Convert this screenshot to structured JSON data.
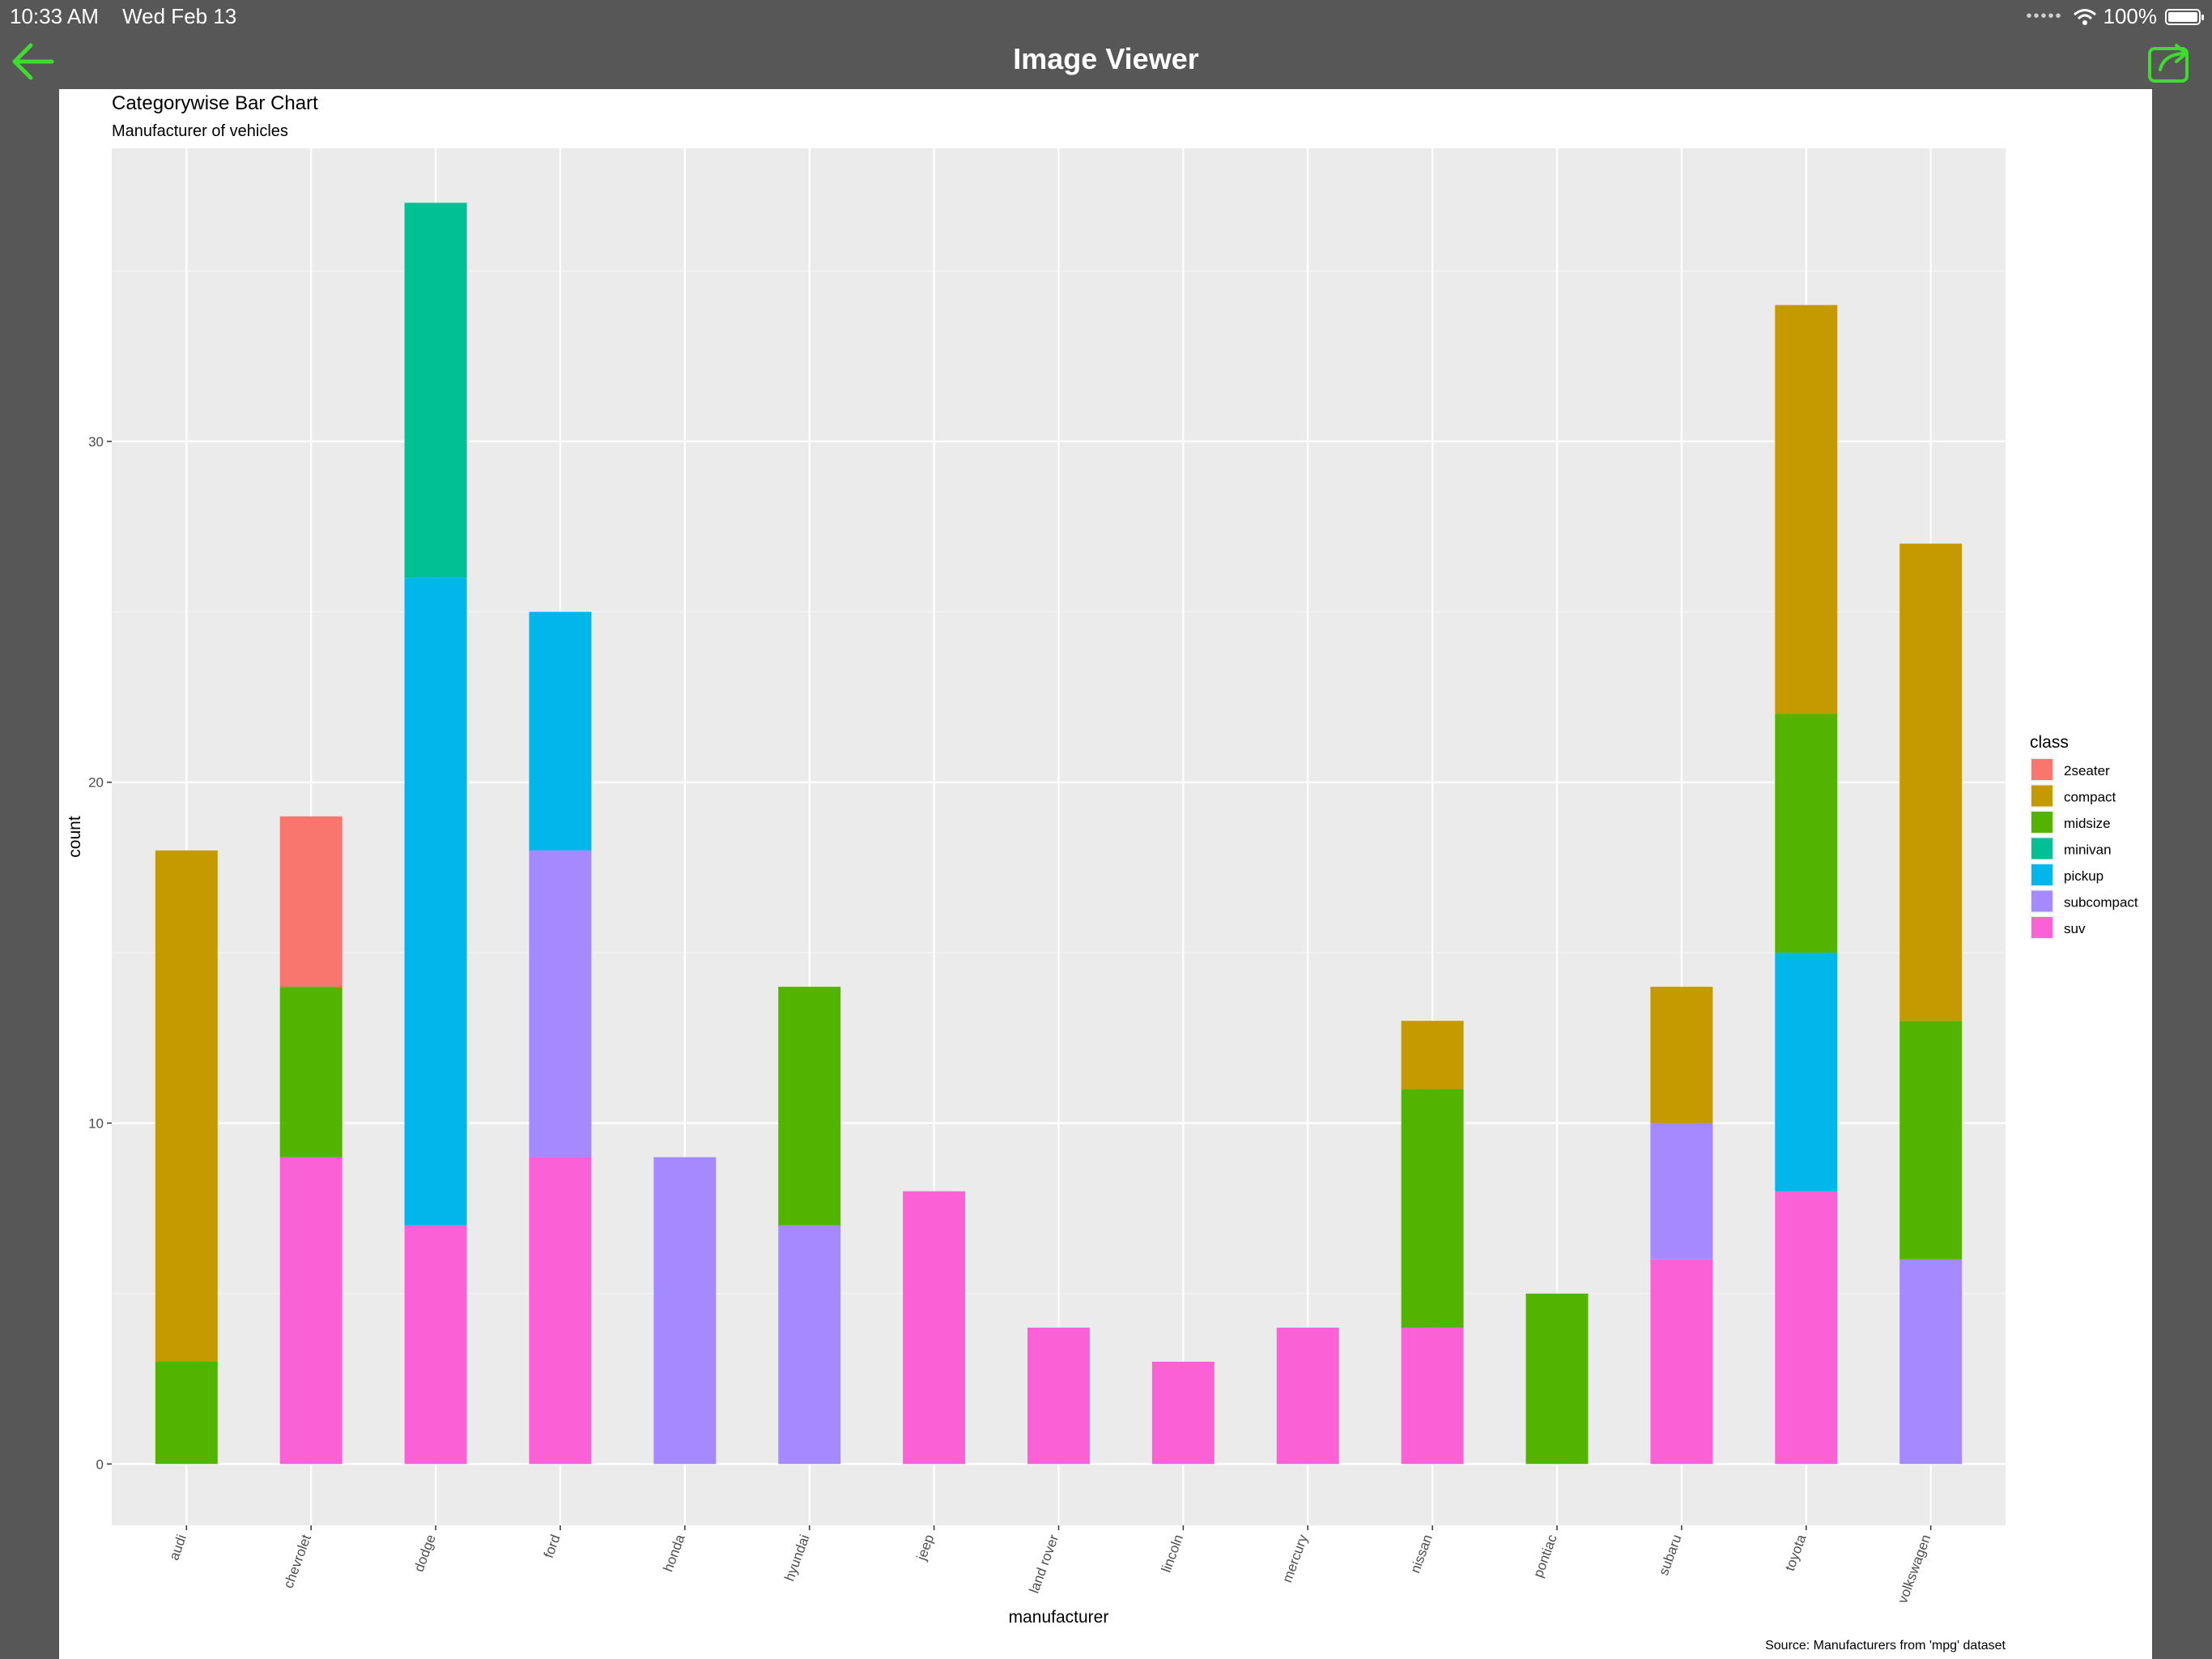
{
  "status": {
    "time": "10:33 AM",
    "date": "Wed Feb 13",
    "battery": "100%"
  },
  "nav": {
    "title": "Image Viewer",
    "back_icon": "arrow-left-icon",
    "share_icon": "share-icon",
    "accent": "#3ddc2e"
  },
  "chart_data": {
    "type": "bar",
    "stacked": true,
    "title": "Categorywise Bar Chart",
    "subtitle": "Manufacturer of vehicles",
    "caption": "Source: Manufacturers from 'mpg' dataset",
    "xlabel": "manufacturer",
    "ylabel": "count",
    "ylim": [
      -1.8,
      38.6
    ],
    "yticks": [
      0,
      10,
      20,
      30
    ],
    "legend_title": "class",
    "legend_position": "right",
    "categories": [
      "audi",
      "chevrolet",
      "dodge",
      "ford",
      "honda",
      "hyundai",
      "jeep",
      "land rover",
      "lincoln",
      "mercury",
      "nissan",
      "pontiac",
      "subaru",
      "toyota",
      "volkswagen"
    ],
    "series": [
      {
        "name": "2seater",
        "color": "#F8766D",
        "values": [
          0,
          5,
          0,
          0,
          0,
          0,
          0,
          0,
          0,
          0,
          0,
          0,
          0,
          0,
          0
        ]
      },
      {
        "name": "compact",
        "color": "#C49A00",
        "values": [
          15,
          0,
          0,
          0,
          0,
          0,
          0,
          0,
          0,
          0,
          2,
          0,
          4,
          12,
          14
        ]
      },
      {
        "name": "midsize",
        "color": "#53B400",
        "values": [
          3,
          5,
          0,
          0,
          0,
          7,
          0,
          0,
          0,
          0,
          7,
          5,
          0,
          7,
          7
        ]
      },
      {
        "name": "minivan",
        "color": "#00C094",
        "values": [
          0,
          0,
          11,
          0,
          0,
          0,
          0,
          0,
          0,
          0,
          0,
          0,
          0,
          0,
          0
        ]
      },
      {
        "name": "pickup",
        "color": "#00B6EB",
        "values": [
          0,
          0,
          19,
          7,
          0,
          0,
          0,
          0,
          0,
          0,
          0,
          0,
          0,
          7,
          0
        ]
      },
      {
        "name": "subcompact",
        "color": "#A58AFF",
        "values": [
          0,
          0,
          0,
          9,
          9,
          7,
          0,
          0,
          0,
          0,
          0,
          0,
          4,
          0,
          6
        ]
      },
      {
        "name": "suv",
        "color": "#FB61D7",
        "values": [
          0,
          9,
          7,
          9,
          0,
          0,
          8,
          4,
          3,
          4,
          4,
          0,
          6,
          8,
          0
        ]
      }
    ]
  }
}
